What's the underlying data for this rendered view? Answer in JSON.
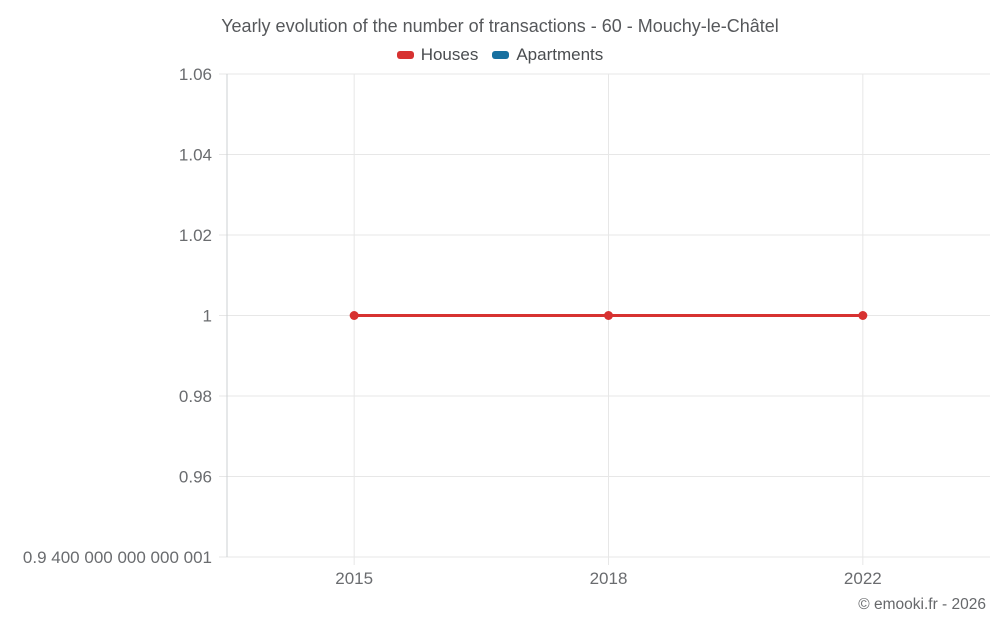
{
  "title": "Yearly evolution of the number of transactions - 60 - Mouchy-le-Châtel",
  "legend": {
    "items": [
      {
        "label": "Houses",
        "color": "#d73231"
      },
      {
        "label": "Apartments",
        "color": "#1770a0"
      }
    ]
  },
  "copyright": "© emooki.fr - 2026",
  "chart_data": {
    "type": "line",
    "title": "Yearly evolution of the number of transactions - 60 - Mouchy-le-Châtel",
    "categories": [
      "2015",
      "2018",
      "2022"
    ],
    "series": [
      {
        "name": "Houses",
        "color": "#d73231",
        "values": [
          1,
          1,
          1
        ]
      },
      {
        "name": "Apartments",
        "color": "#1770a0",
        "values": []
      }
    ],
    "xlabel": "",
    "ylabel": "",
    "ylim": [
      0.9400000000000001,
      1.06
    ],
    "y_ticks": [
      {
        "value": 1.06,
        "label": "1.06"
      },
      {
        "value": 1.04,
        "label": "1.04"
      },
      {
        "value": 1.02,
        "label": "1.02"
      },
      {
        "value": 1,
        "label": "1"
      },
      {
        "value": 0.98,
        "label": "0.98"
      },
      {
        "value": 0.96,
        "label": "0.96"
      },
      {
        "value": 0.9400000000000001,
        "label": "0.9 400 000 000 000 001"
      }
    ],
    "grid": true,
    "legend_position": "top",
    "colors": {
      "gridline": "#e7e7e7",
      "axis_line": "#cdd0d3",
      "tick_label": "#6a6c6f"
    }
  }
}
